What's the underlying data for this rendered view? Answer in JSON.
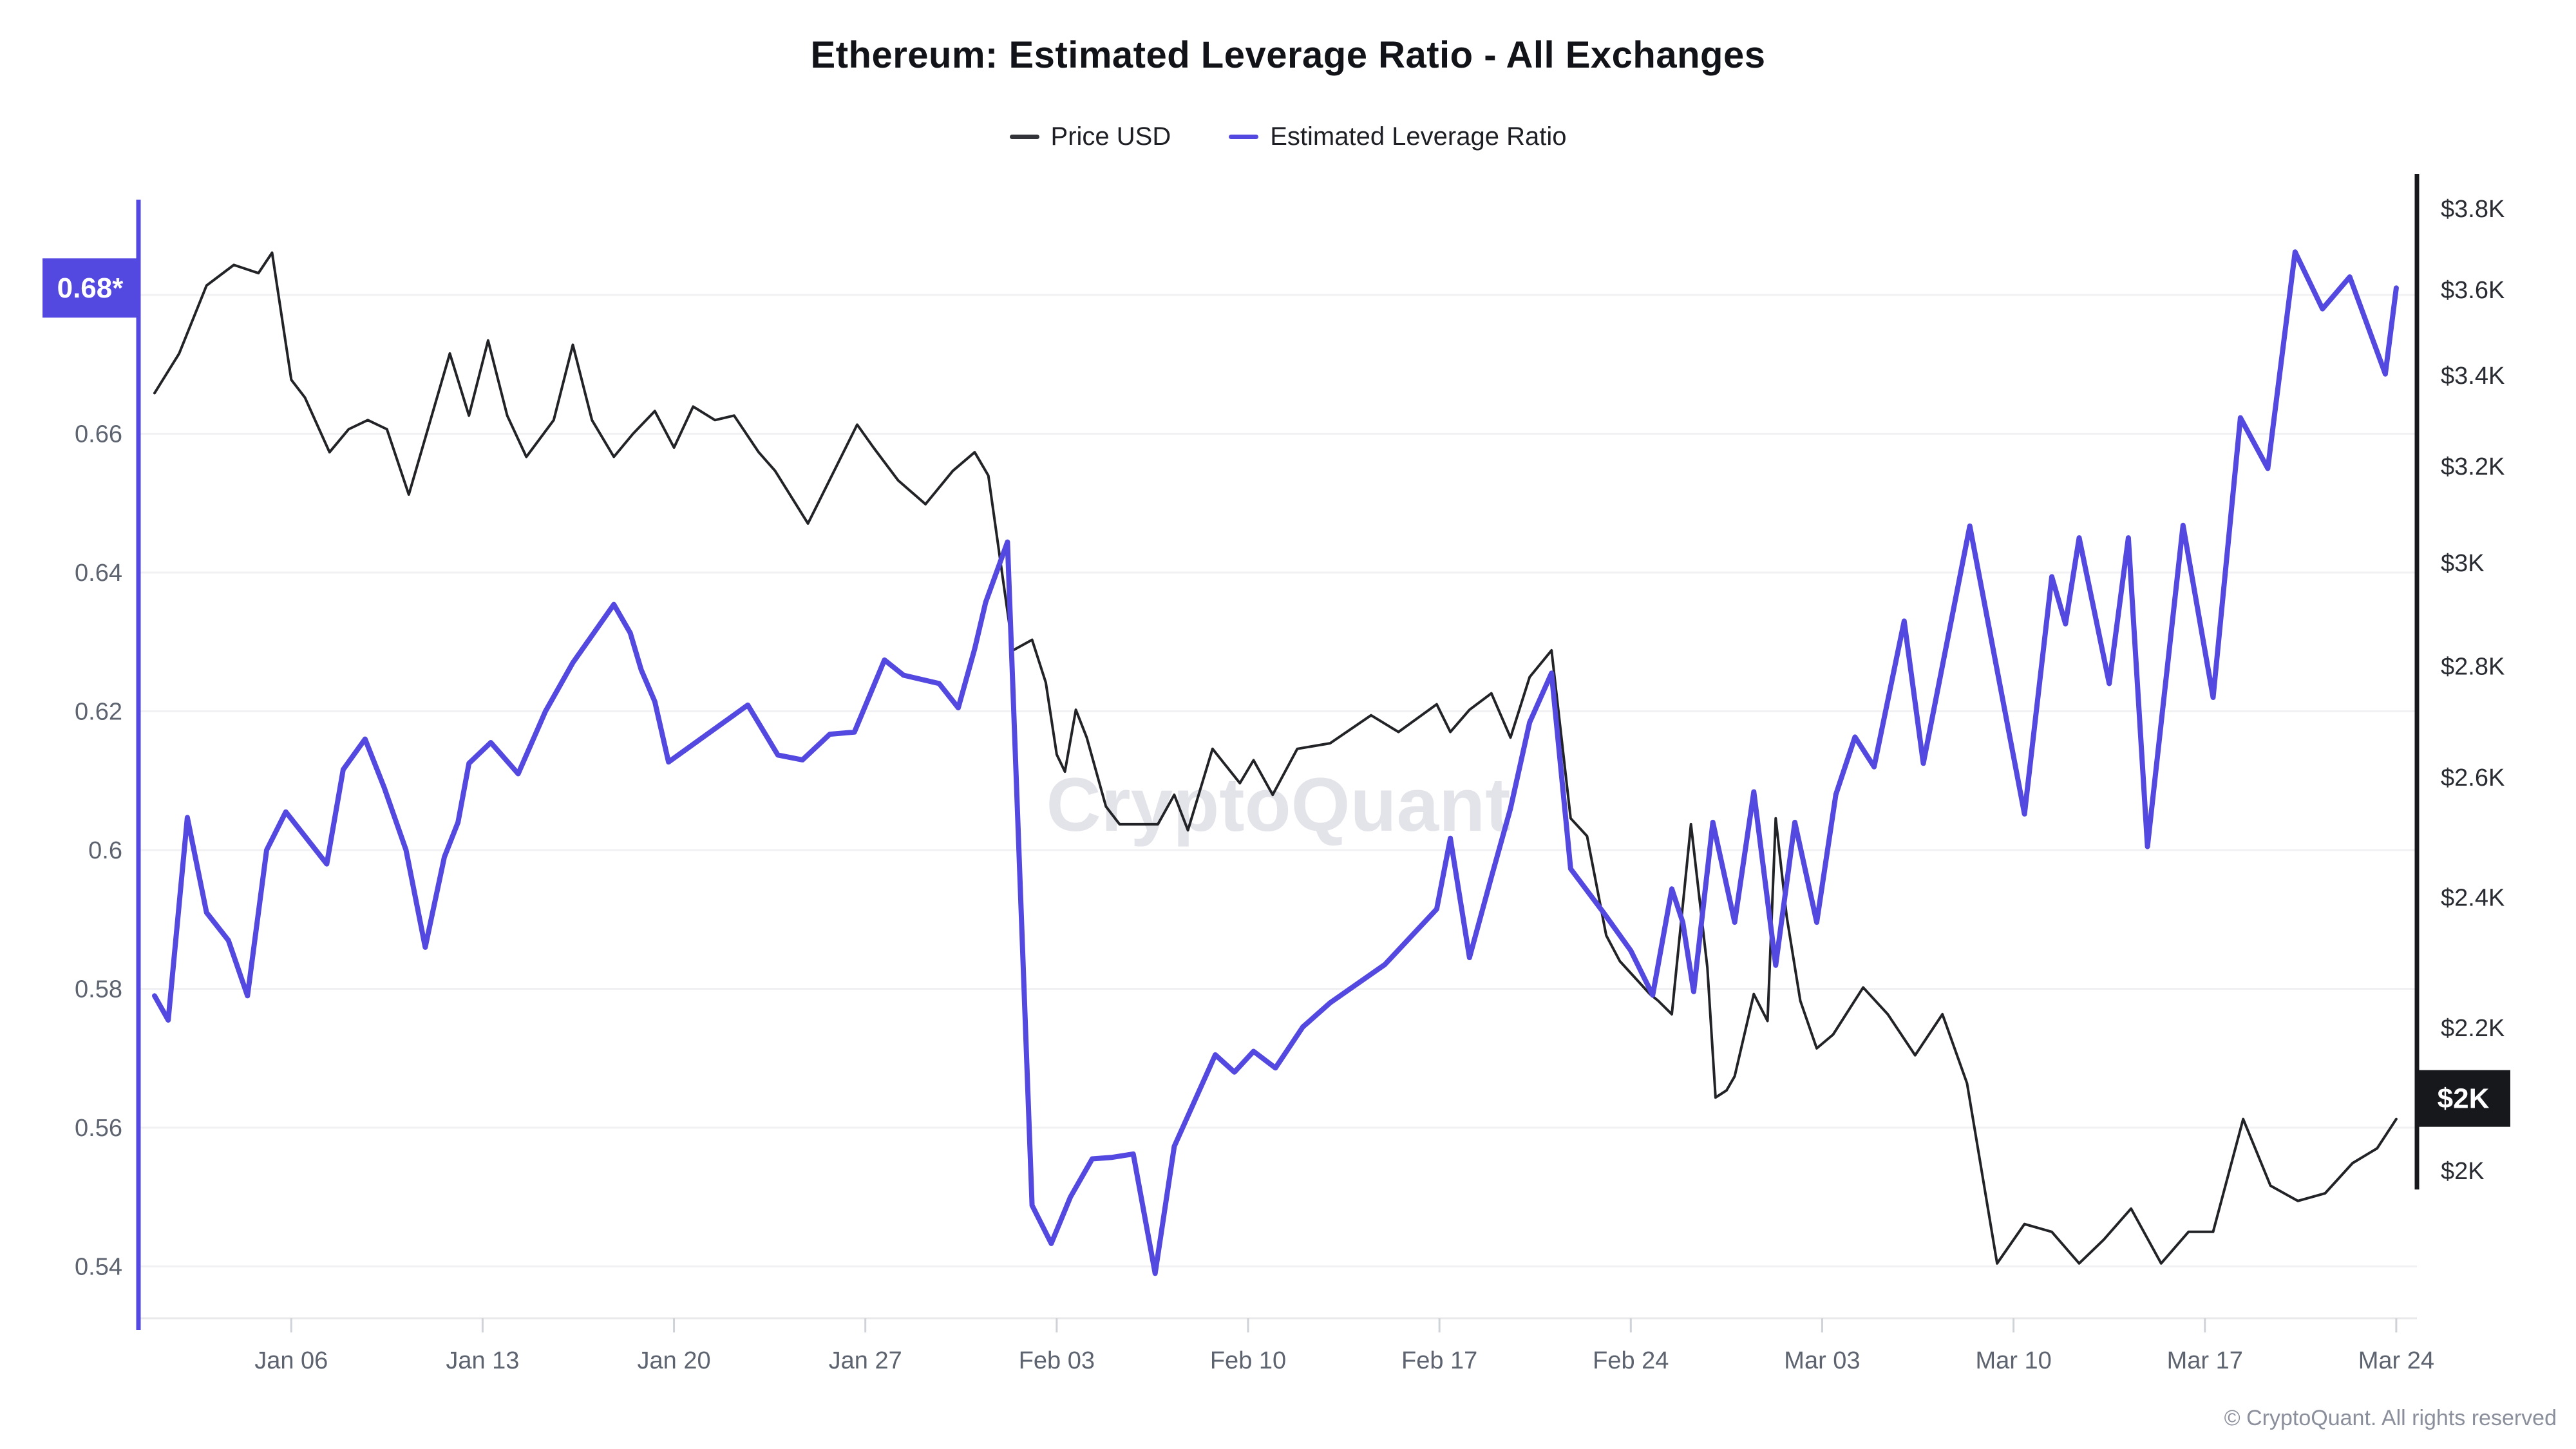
{
  "header": {
    "title": "Ethereum: Estimated Leverage Ratio - All Exchanges"
  },
  "legend": [
    {
      "label": "Price USD",
      "color": "#33343a"
    },
    {
      "label": "Estimated Leverage Ratio",
      "color": "#5348e0"
    }
  ],
  "watermark": "CryptoQuant",
  "footer": {
    "copyright": "© CryptoQuant. All rights reserved"
  },
  "badges": {
    "leverage": {
      "text": "0.68*",
      "bg": "#5348e0",
      "fg": "#ffffff"
    },
    "price": {
      "text": "$2K",
      "bg": "#17181c",
      "fg": "#ffffff"
    }
  },
  "chart_data": {
    "type": "line",
    "title": "Ethereum: Estimated Leverage Ratio - All Exchanges",
    "grid": "horizontal-only",
    "legend_position": "top-center",
    "x_axis": {
      "start_label_day_offset_from_jan1": 0,
      "tick_labels": [
        "Jan 06",
        "Jan 13",
        "Jan 20",
        "Jan 27",
        "Feb 03",
        "Feb 10",
        "Feb 17",
        "Feb 24",
        "Mar 03",
        "Mar 10",
        "Mar 17",
        "Mar 24"
      ],
      "tick_day_offsets": [
        5,
        12,
        19,
        26,
        33,
        40,
        47,
        54,
        61,
        68,
        75,
        82
      ]
    },
    "y_left_axis": {
      "series": "Estimated Leverage Ratio",
      "scale": "linear",
      "tick_labels": [
        "0.68",
        "0.66",
        "0.64",
        "0.62",
        "0.6",
        "0.58",
        "0.56",
        "0.54"
      ],
      "tick_values": [
        0.68,
        0.66,
        0.64,
        0.62,
        0.6,
        0.58,
        0.56,
        0.54
      ],
      "latest_marker": "0.68*"
    },
    "y_right_axis": {
      "series": "Price USD",
      "scale": "log",
      "tick_labels": [
        "$3.8K",
        "$3.6K",
        "$3.4K",
        "$3.2K",
        "$3K",
        "$2.8K",
        "$2.6K",
        "$2.4K",
        "$2.2K",
        "$2K"
      ],
      "tick_values_usd": [
        3800,
        3600,
        3400,
        3200,
        3000,
        2800,
        2600,
        2400,
        2200,
        2000
      ],
      "latest_marker": "$2K"
    },
    "series": [
      {
        "name": "Price USD",
        "axis": "right",
        "color": "#222327",
        "stroke_width": 4,
        "units": "USD (thousands)",
        "points": [
          [
            0,
            3.36
          ],
          [
            0.9,
            3.45
          ],
          [
            1.9,
            3.61
          ],
          [
            2.9,
            3.66
          ],
          [
            3.8,
            3.64
          ],
          [
            4.3,
            3.69
          ],
          [
            5.0,
            3.39
          ],
          [
            5.5,
            3.35
          ],
          [
            6.4,
            3.23
          ],
          [
            7.1,
            3.28
          ],
          [
            7.8,
            3.3
          ],
          [
            8.5,
            3.28
          ],
          [
            9.3,
            3.14
          ],
          [
            10.8,
            3.45
          ],
          [
            11.5,
            3.31
          ],
          [
            12.2,
            3.48
          ],
          [
            12.9,
            3.31
          ],
          [
            13.6,
            3.22
          ],
          [
            14.6,
            3.3
          ],
          [
            15.3,
            3.47
          ],
          [
            16.0,
            3.3
          ],
          [
            16.8,
            3.22
          ],
          [
            17.5,
            3.27
          ],
          [
            18.3,
            3.32
          ],
          [
            19.0,
            3.24
          ],
          [
            19.7,
            3.33
          ],
          [
            20.5,
            3.3
          ],
          [
            21.2,
            3.31
          ],
          [
            22.1,
            3.23
          ],
          [
            22.7,
            3.19
          ],
          [
            23.9,
            3.08
          ],
          [
            25.7,
            3.29
          ],
          [
            26.3,
            3.24
          ],
          [
            27.2,
            3.17
          ],
          [
            28.2,
            3.12
          ],
          [
            29.2,
            3.19
          ],
          [
            30.0,
            3.23
          ],
          [
            30.5,
            3.18
          ],
          [
            31.0,
            2.98
          ],
          [
            31.4,
            2.83
          ],
          [
            32.1,
            2.85
          ],
          [
            32.6,
            2.77
          ],
          [
            33.0,
            2.64
          ],
          [
            33.3,
            2.61
          ],
          [
            33.7,
            2.72
          ],
          [
            34.1,
            2.67
          ],
          [
            34.8,
            2.55
          ],
          [
            35.3,
            2.52
          ],
          [
            36.7,
            2.52
          ],
          [
            37.3,
            2.57
          ],
          [
            37.8,
            2.51
          ],
          [
            38.7,
            2.65
          ],
          [
            39.7,
            2.59
          ],
          [
            40.2,
            2.63
          ],
          [
            40.9,
            2.57
          ],
          [
            41.8,
            2.65
          ],
          [
            43.0,
            2.66
          ],
          [
            44.5,
            2.71
          ],
          [
            45.5,
            2.68
          ],
          [
            46.9,
            2.73
          ],
          [
            47.4,
            2.68
          ],
          [
            48.1,
            2.72
          ],
          [
            48.9,
            2.75
          ],
          [
            49.6,
            2.67
          ],
          [
            50.3,
            2.78
          ],
          [
            51.1,
            2.83
          ],
          [
            51.8,
            2.53
          ],
          [
            52.4,
            2.5
          ],
          [
            53.1,
            2.34
          ],
          [
            53.6,
            2.3
          ],
          [
            54.7,
            2.25
          ],
          [
            55.0,
            2.24
          ],
          [
            55.5,
            2.22
          ],
          [
            56.2,
            2.52
          ],
          [
            56.8,
            2.29
          ],
          [
            57.1,
            2.1
          ],
          [
            57.5,
            2.11
          ],
          [
            57.8,
            2.13
          ],
          [
            58.5,
            2.25
          ],
          [
            59.0,
            2.21
          ],
          [
            59.3,
            2.53
          ],
          [
            59.7,
            2.37
          ],
          [
            60.2,
            2.24
          ],
          [
            60.8,
            2.17
          ],
          [
            61.4,
            2.19
          ],
          [
            62.5,
            2.26
          ],
          [
            63.4,
            2.22
          ],
          [
            64.4,
            2.16
          ],
          [
            65.4,
            2.22
          ],
          [
            66.3,
            2.12
          ],
          [
            67.4,
            1.88
          ],
          [
            68.4,
            1.93
          ],
          [
            69.4,
            1.92
          ],
          [
            70.4,
            1.88
          ],
          [
            71.3,
            1.91
          ],
          [
            72.3,
            1.95
          ],
          [
            73.4,
            1.88
          ],
          [
            74.4,
            1.92
          ],
          [
            75.3,
            1.92
          ],
          [
            76.4,
            2.07
          ],
          [
            77.4,
            1.98
          ],
          [
            78.4,
            1.96
          ],
          [
            79.4,
            1.97
          ],
          [
            80.4,
            2.01
          ],
          [
            81.3,
            2.03
          ],
          [
            82,
            2.07
          ]
        ]
      },
      {
        "name": "Estimated Leverage Ratio",
        "axis": "left",
        "color": "#5348e0",
        "stroke_width": 8,
        "units": "ratio",
        "points": [
          [
            0,
            0.579
          ],
          [
            0.5,
            0.5755
          ],
          [
            1.2,
            0.6047
          ],
          [
            1.9,
            0.591
          ],
          [
            2.7,
            0.587
          ],
          [
            3.4,
            0.579
          ],
          [
            4.1,
            0.6
          ],
          [
            4.8,
            0.6055
          ],
          [
            6.3,
            0.598
          ],
          [
            6.9,
            0.6116
          ],
          [
            7.7,
            0.616
          ],
          [
            8.4,
            0.609
          ],
          [
            9.2,
            0.6
          ],
          [
            9.9,
            0.586
          ],
          [
            10.6,
            0.599
          ],
          [
            11.1,
            0.604
          ],
          [
            11.5,
            0.6125
          ],
          [
            12.3,
            0.6155
          ],
          [
            13.3,
            0.611
          ],
          [
            14.3,
            0.62
          ],
          [
            15.3,
            0.627
          ],
          [
            16.8,
            0.6354
          ],
          [
            17.4,
            0.6313
          ],
          [
            17.8,
            0.626
          ],
          [
            18.3,
            0.6214
          ],
          [
            18.8,
            0.6127
          ],
          [
            21.7,
            0.6209
          ],
          [
            22.8,
            0.6137
          ],
          [
            23.7,
            0.613
          ],
          [
            24.7,
            0.6167
          ],
          [
            25.6,
            0.617
          ],
          [
            26.7,
            0.6274
          ],
          [
            27.4,
            0.6252
          ],
          [
            28.7,
            0.624
          ],
          [
            29.4,
            0.6205
          ],
          [
            30.0,
            0.629
          ],
          [
            30.4,
            0.6357
          ],
          [
            31.2,
            0.6444
          ],
          [
            32.1,
            0.5488
          ],
          [
            32.8,
            0.5433
          ],
          [
            33.5,
            0.55
          ],
          [
            34.3,
            0.5555
          ],
          [
            35.0,
            0.5557
          ],
          [
            35.8,
            0.5562
          ],
          [
            36.6,
            0.539
          ],
          [
            37.3,
            0.5573
          ],
          [
            38.8,
            0.5705
          ],
          [
            39.5,
            0.568
          ],
          [
            40.2,
            0.571
          ],
          [
            41.0,
            0.5686
          ],
          [
            42.0,
            0.5745
          ],
          [
            43.0,
            0.578
          ],
          [
            45.0,
            0.5835
          ],
          [
            46.9,
            0.5915
          ],
          [
            47.4,
            0.6017
          ],
          [
            48.1,
            0.5845
          ],
          [
            48.9,
            0.5961
          ],
          [
            49.6,
            0.606
          ],
          [
            50.3,
            0.6184
          ],
          [
            51.1,
            0.6255
          ],
          [
            51.8,
            0.5973
          ],
          [
            53.0,
            0.591
          ],
          [
            54.0,
            0.5855
          ],
          [
            54.8,
            0.5791
          ],
          [
            55.5,
            0.5944
          ],
          [
            55.9,
            0.5896
          ],
          [
            56.3,
            0.5796
          ],
          [
            57.0,
            0.604
          ],
          [
            57.8,
            0.5896
          ],
          [
            58.5,
            0.6084
          ],
          [
            59.3,
            0.5834
          ],
          [
            60.0,
            0.604
          ],
          [
            60.8,
            0.5896
          ],
          [
            61.5,
            0.608
          ],
          [
            62.2,
            0.6163
          ],
          [
            62.9,
            0.612
          ],
          [
            64.0,
            0.633
          ],
          [
            64.7,
            0.6125
          ],
          [
            66.4,
            0.6467
          ],
          [
            67.3,
            0.628
          ],
          [
            68.4,
            0.6052
          ],
          [
            69.4,
            0.6394
          ],
          [
            69.9,
            0.6326
          ],
          [
            70.4,
            0.645
          ],
          [
            71.5,
            0.624
          ],
          [
            72.2,
            0.645
          ],
          [
            72.9,
            0.6005
          ],
          [
            74.2,
            0.6468
          ],
          [
            75.3,
            0.622
          ],
          [
            76.3,
            0.6623
          ],
          [
            77.3,
            0.655
          ],
          [
            78.3,
            0.6862
          ],
          [
            79.3,
            0.678
          ],
          [
            80.3,
            0.6826
          ],
          [
            81.6,
            0.6686
          ],
          [
            82,
            0.681
          ]
        ]
      }
    ]
  }
}
